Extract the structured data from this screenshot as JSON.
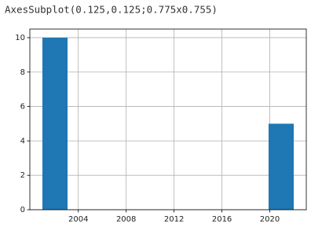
{
  "output_text": "AxesSubplot(0.125,0.125;0.775x0.755)",
  "chart_data": {
    "type": "histogram",
    "color": "#1f77b4",
    "bins": [
      2001,
      2003.1,
      2005.2,
      2007.3,
      2009.4,
      2011.5,
      2013.6,
      2015.7,
      2017.8,
      2019.9,
      2022
    ],
    "values": [
      10,
      0,
      0,
      0,
      0,
      0,
      0,
      0,
      0,
      5
    ],
    "xlim": [
      1999.95,
      2023.05
    ],
    "xticks": [
      2004,
      2008,
      2012,
      2016,
      2020
    ],
    "ylim": [
      0,
      10.5
    ],
    "yticks": [
      0,
      2,
      4,
      6,
      8,
      10
    ],
    "grid": true
  }
}
